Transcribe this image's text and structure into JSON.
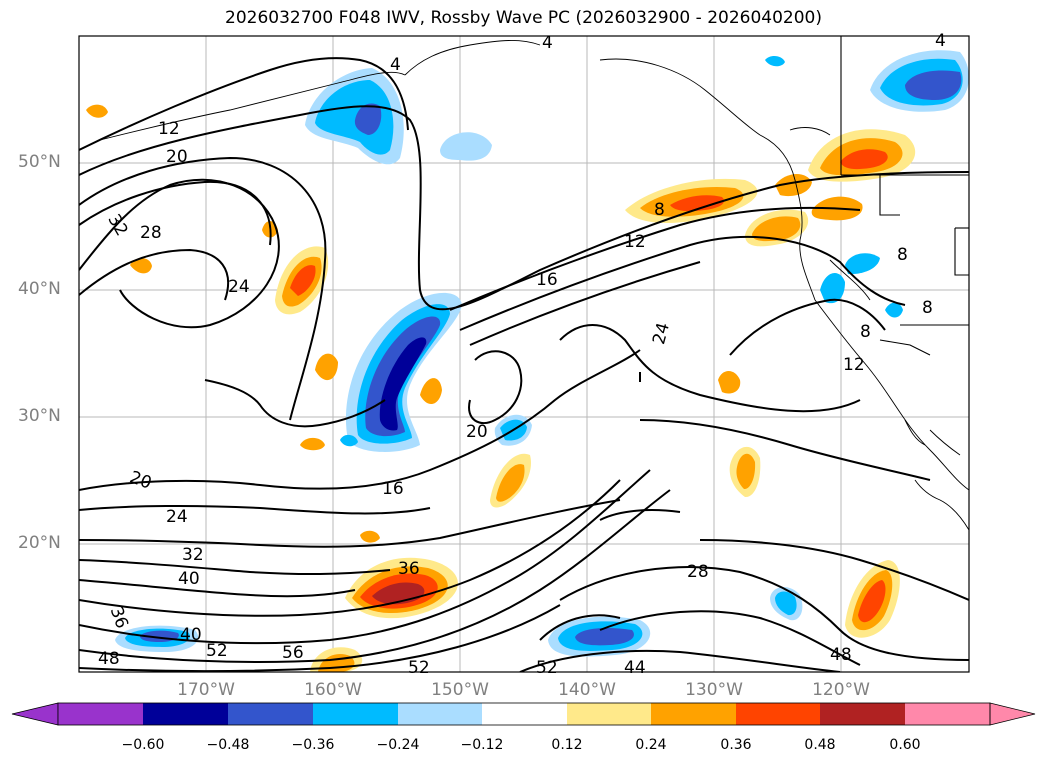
{
  "title": "2026032700 F048 IWV, Rossby Wave PC (2026032900 - 2026040200)",
  "map": {
    "lat_labels": [
      "50°N",
      "40°N",
      "30°N",
      "20°N"
    ],
    "lon_labels": [
      "170°W",
      "160°W",
      "150°W",
      "140°W",
      "130°W",
      "120°W"
    ],
    "contour_labels": [
      "4",
      "4",
      "4",
      "12",
      "20",
      "32",
      "28",
      "24",
      "24",
      "16",
      "12",
      "8",
      "8",
      "8",
      "8",
      "12",
      "20",
      "16",
      "20",
      "24",
      "32",
      "40",
      "36",
      "40",
      "48",
      "52",
      "56",
      "52",
      "52",
      "44",
      "28",
      "48",
      "36"
    ]
  },
  "colorbar": {
    "ticks": [
      "−0.60",
      "−0.48",
      "−0.36",
      "−0.24",
      "−0.12",
      "0.12",
      "0.24",
      "0.36",
      "0.48",
      "0.60"
    ],
    "colors": [
      "#9933cc",
      "#000099",
      "#3355cc",
      "#00bbff",
      "#aaddff",
      "#ffffff",
      "#ffe98a",
      "#ffa200",
      "#ff4400",
      "#b02222",
      "#ff88aa"
    ]
  }
}
